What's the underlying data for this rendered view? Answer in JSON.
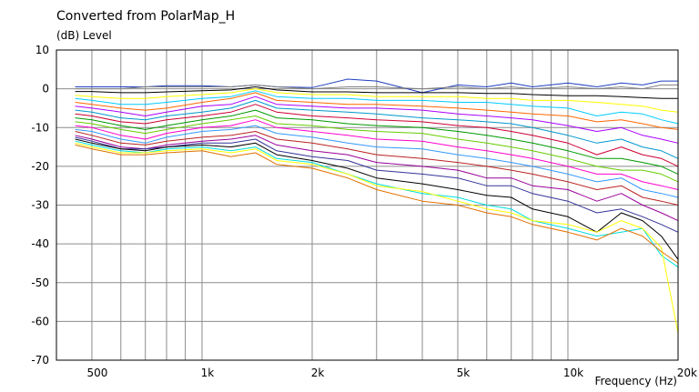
{
  "chart_data": {
    "type": "line",
    "title": "Converted from PolarMap_H",
    "ylabel": "(dB)  Level",
    "xlabel": "Frequency  (Hz)",
    "x_scale": "log",
    "xlim": [
      400,
      20000
    ],
    "ylim": [
      -70,
      10
    ],
    "grid": true,
    "y_ticks": [
      10,
      0,
      -10,
      -20,
      -30,
      -40,
      -50,
      -60,
      -70
    ],
    "x_ticks": [
      {
        "value": 500,
        "label": "500"
      },
      {
        "value": 1000,
        "label": "1k"
      },
      {
        "value": 2000,
        "label": "2k"
      },
      {
        "value": 5000,
        "label": "5k"
      },
      {
        "value": 10000,
        "label": "10k"
      },
      {
        "value": 20000,
        "label": "20k"
      }
    ],
    "x": [
      450,
      500,
      600,
      700,
      800,
      1000,
      1200,
      1400,
      1600,
      2000,
      2500,
      3000,
      4000,
      5000,
      6000,
      7000,
      8000,
      10000,
      12000,
      14000,
      16000,
      18000,
      20000
    ],
    "series": [
      {
        "color": "#1f3fbf",
        "values": [
          0.5,
          0.5,
          0.5,
          0.5,
          0.8,
          0.8,
          0.5,
          1,
          0.5,
          0.3,
          2.5,
          2,
          -1,
          1,
          0.5,
          1.5,
          0.5,
          1.5,
          0.5,
          1.5,
          1,
          2,
          2
        ]
      },
      {
        "color": "#808080",
        "values": [
          0,
          0,
          0,
          0.5,
          0.5,
          0.5,
          0.5,
          1,
          0.5,
          0,
          0.5,
          0.5,
          0,
          0.5,
          0,
          0.5,
          0,
          0.5,
          0,
          0.5,
          0,
          1,
          1
        ]
      },
      {
        "color": "#000000",
        "values": [
          -0.7,
          -0.7,
          -1,
          -1,
          -0.8,
          -0.5,
          -0.3,
          0.5,
          -0.3,
          -0.8,
          -0.8,
          -1,
          -1,
          -1,
          -1.2,
          -1.2,
          -1.5,
          -1.8,
          -1.8,
          -2,
          -2.3,
          -2.5,
          -2.5
        ]
      },
      {
        "color": "#ffff00",
        "values": [
          -1.7,
          -2,
          -2.5,
          -2.5,
          -2,
          -1.5,
          -1,
          0,
          -1,
          -1.5,
          -1.5,
          -2,
          -2,
          -2,
          -2.5,
          -2.5,
          -3,
          -3,
          -3.5,
          -4,
          -4.5,
          -5.5,
          -6
        ]
      },
      {
        "color": "#00ccff",
        "values": [
          -2.5,
          -3,
          -4,
          -4,
          -3.5,
          -2.5,
          -2,
          -0.5,
          -2,
          -2.5,
          -2.5,
          -3,
          -3,
          -3.5,
          -3.5,
          -4,
          -4.5,
          -5,
          -7,
          -6,
          -6.5,
          -8,
          -9
        ]
      },
      {
        "color": "#ff6600",
        "values": [
          -3.5,
          -4,
          -5,
          -5.5,
          -5,
          -3.5,
          -2.5,
          -1,
          -3,
          -3.5,
          -4,
          -4,
          -4.5,
          -5,
          -5.5,
          -6,
          -6.5,
          -7,
          -8.5,
          -8,
          -9,
          -10,
          -10.5
        ]
      },
      {
        "color": "#aa00ff",
        "values": [
          -4.5,
          -5,
          -6,
          -7,
          -6,
          -4.5,
          -4,
          -2,
          -4,
          -4.5,
          -5,
          -5,
          -5.5,
          -6.5,
          -7,
          -7.5,
          -8,
          -9.5,
          -11,
          -10,
          -12,
          -13,
          -14
        ]
      },
      {
        "color": "#0099cc",
        "values": [
          -5.5,
          -6,
          -7.5,
          -8,
          -7,
          -6,
          -5,
          -3,
          -5,
          -5.5,
          -6,
          -6.5,
          -7.5,
          -8,
          -8.5,
          -9,
          -10,
          -12,
          -14,
          -13,
          -15,
          -16,
          -18
        ]
      },
      {
        "color": "#cc0033",
        "values": [
          -6.5,
          -7,
          -8.5,
          -9,
          -8,
          -7,
          -6,
          -4,
          -6,
          -7,
          -7.5,
          -8,
          -8.5,
          -9.5,
          -10,
          -11,
          -12,
          -14,
          -17,
          -15,
          -17,
          -18,
          -20
        ]
      },
      {
        "color": "#009900",
        "values": [
          -7.5,
          -8,
          -9.5,
          -10.5,
          -9.5,
          -8,
          -7,
          -5.5,
          -7.5,
          -8,
          -9,
          -9.5,
          -10,
          -11,
          -12,
          -13,
          -14,
          -16,
          -18,
          -18,
          -19,
          -20,
          -22
        ]
      },
      {
        "color": "#66cc00",
        "values": [
          -8.5,
          -9,
          -10.5,
          -11.5,
          -10.5,
          -9,
          -8,
          -7,
          -9,
          -9.5,
          -10.5,
          -11,
          -11.5,
          -13,
          -14,
          -15,
          -16,
          -18,
          -20,
          -21,
          -21,
          -22,
          -24
        ]
      },
      {
        "color": "#ff00cc",
        "values": [
          -9.5,
          -10,
          -12,
          -13,
          -11.5,
          -10,
          -9.5,
          -8,
          -10,
          -11,
          -12,
          -13,
          -13.5,
          -15,
          -16,
          -17,
          -18,
          -20,
          -22,
          -22,
          -24,
          -25,
          -26
        ]
      },
      {
        "color": "#3399ff",
        "values": [
          -10.5,
          -11,
          -13,
          -14,
          -12.5,
          -11,
          -10.5,
          -9.5,
          -11.5,
          -12.5,
          -14,
          -15,
          -15.5,
          -17,
          -18,
          -19,
          -20,
          -22,
          -24,
          -23,
          -26,
          -27,
          -28
        ]
      },
      {
        "color": "#bb2222",
        "values": [
          -11,
          -12,
          -14,
          -14.5,
          -13.5,
          -12.5,
          -12,
          -11,
          -13,
          -14,
          -15.5,
          -17,
          -18,
          -19,
          -20,
          -21,
          -22,
          -24,
          -26,
          -25,
          -28,
          -29,
          -30
        ]
      },
      {
        "color": "#990099",
        "values": [
          -12,
          -13,
          -15,
          -15.5,
          -14.5,
          -13.5,
          -13,
          -12,
          -14.5,
          -16,
          -17,
          -19,
          -20,
          -21,
          -23,
          -23,
          -25,
          -26,
          -29,
          -27,
          -30,
          -32,
          -34
        ]
      },
      {
        "color": "#333399",
        "values": [
          -12.5,
          -13.5,
          -15.5,
          -15.5,
          -15,
          -14,
          -14,
          -13,
          -16,
          -17.5,
          -18.5,
          -21,
          -22,
          -23,
          -25,
          -25,
          -27,
          -29,
          -32,
          -31,
          -33,
          -35,
          -37
        ]
      },
      {
        "color": "#000000",
        "values": [
          -13,
          -14,
          -15.5,
          -16,
          -15,
          -14.5,
          -15,
          -14,
          -17,
          -18.5,
          -20.5,
          -23,
          -24.5,
          -26,
          -27.5,
          -28,
          -31,
          -33,
          -37,
          -32,
          -34,
          -38,
          -44
        ]
      },
      {
        "color": "#00dddd",
        "values": [
          -13.5,
          -14.5,
          -16,
          -16.5,
          -15.5,
          -15,
          -16,
          -15,
          -18,
          -19,
          -22,
          -24.5,
          -27,
          -28,
          -30,
          -31,
          -34,
          -36,
          -38,
          -37,
          -36,
          -43,
          -46
        ]
      },
      {
        "color": "#ffff00",
        "values": [
          -14,
          -15,
          -16.5,
          -16.5,
          -16,
          -15.5,
          -16.5,
          -15.5,
          -18.5,
          -19.5,
          -22,
          -25,
          -26.5,
          -29,
          -31,
          -32,
          -34,
          -35,
          -37,
          -34,
          -36,
          -41,
          -63
        ]
      },
      {
        "color": "#e07000",
        "values": [
          -14.5,
          -15.5,
          -17,
          -17,
          -16.5,
          -16,
          -17.5,
          -16.5,
          -19.5,
          -20.5,
          -23,
          -26,
          -29,
          -30,
          -32,
          -33,
          -35,
          -37,
          -39,
          -36,
          -38,
          -42,
          -45
        ]
      }
    ]
  }
}
